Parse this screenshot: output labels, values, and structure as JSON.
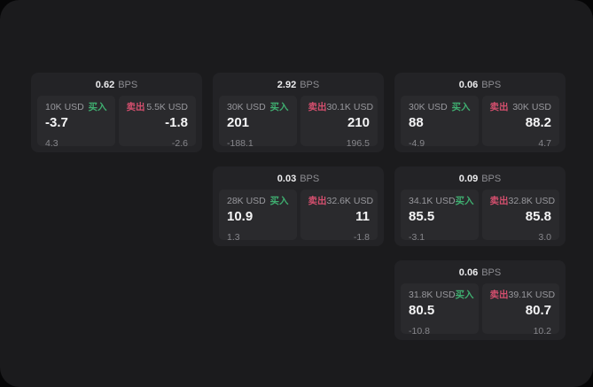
{
  "page": {
    "bps_unit": "BPS",
    "buy_label": "买入",
    "sell_label": "卖出",
    "colors": {
      "background": "#060607",
      "panel": "#1b1b1d",
      "card": "#232326",
      "tile": "#2a2a2d",
      "buy": "#3fae70",
      "sell": "#d44f6e",
      "text_primary": "#f4f4f5",
      "text_muted": "#8c8c91"
    },
    "cards": [
      {
        "row": 1,
        "col": 1,
        "bps": "0.62",
        "buy": {
          "size": "10K USD",
          "price": "-3.7",
          "delta": "4.3"
        },
        "sell": {
          "size": "5.5K USD",
          "price": "-1.8",
          "delta": "-2.6"
        }
      },
      {
        "row": 1,
        "col": 2,
        "bps": "2.92",
        "buy": {
          "size": "30K USD",
          "price": "201",
          "delta": "-188.1"
        },
        "sell": {
          "size": "30.1K USD",
          "price": "210",
          "delta": "196.5"
        }
      },
      {
        "row": 1,
        "col": 3,
        "bps": "0.06",
        "buy": {
          "size": "30K USD",
          "price": "88",
          "delta": "-4.9"
        },
        "sell": {
          "size": "30K USD",
          "price": "88.2",
          "delta": "4.7"
        }
      },
      {
        "row": 2,
        "col": 2,
        "bps": "0.03",
        "buy": {
          "size": "28K USD",
          "price": "10.9",
          "delta": "1.3"
        },
        "sell": {
          "size": "32.6K USD",
          "price": "11",
          "delta": "-1.8"
        }
      },
      {
        "row": 2,
        "col": 3,
        "bps": "0.09",
        "buy": {
          "size": "34.1K USD",
          "price": "85.5",
          "delta": "-3.1"
        },
        "sell": {
          "size": "32.8K USD",
          "price": "85.8",
          "delta": "3.0"
        }
      },
      {
        "row": 3,
        "col": 3,
        "bps": "0.06",
        "buy": {
          "size": "31.8K USD",
          "price": "80.5",
          "delta": "-10.8"
        },
        "sell": {
          "size": "39.1K USD",
          "price": "80.7",
          "delta": "10.2"
        }
      }
    ]
  }
}
